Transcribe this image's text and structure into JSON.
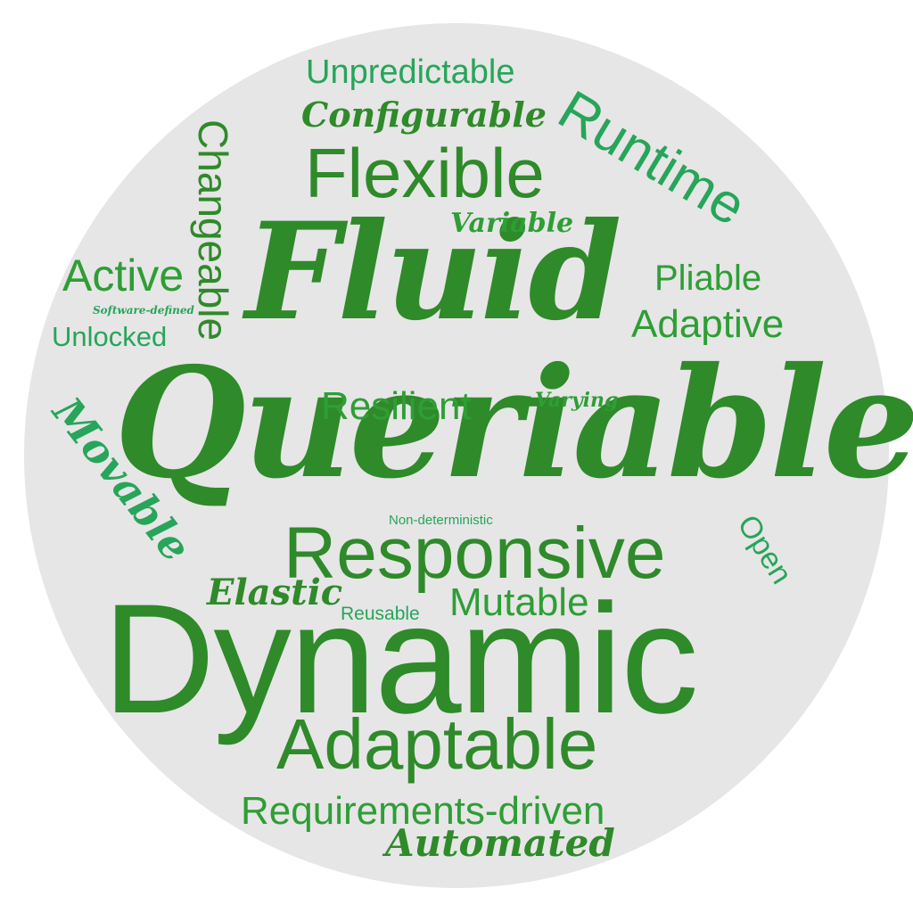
{
  "colors": {
    "background": "#e6e6e6",
    "dark_green": "#2f8a2a",
    "emerald": "#27a55a",
    "green": "#2e9e35"
  },
  "words": {
    "queriable": "Queriable",
    "dynamic": "Dynamic",
    "fluid": "Fluid",
    "responsive": "Responsive",
    "flexible": "Flexible",
    "adaptable": "Adaptable",
    "runtime": "Runtime",
    "requirements_driven": "Requirements-driven",
    "changeable": "Changeable",
    "adaptive": "Adaptive",
    "active": "Active",
    "movable": "Movable",
    "unpredictable": "Unpredictable",
    "configurable": "Configurable",
    "resilient": "Resilient",
    "mutable": "Mutable",
    "automated": "Automated",
    "elastic": "Elastic",
    "pliable": "Pliable",
    "unlocked": "Unlocked",
    "open": "Open",
    "variable": "Variable",
    "varying": "Varying",
    "reusable": "Reusable",
    "non_deterministic": "Non-deterministic",
    "software_defined": "Software-defined"
  }
}
